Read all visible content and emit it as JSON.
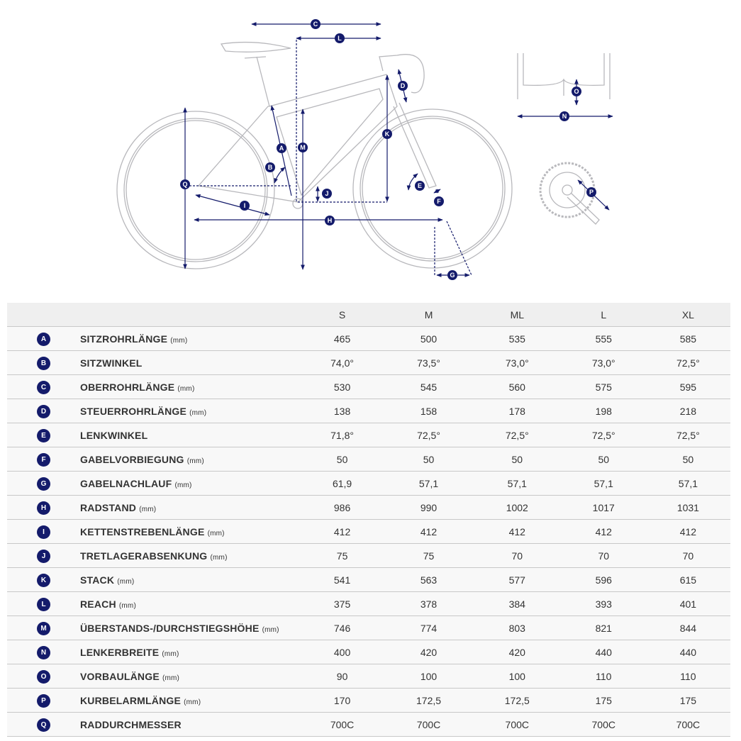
{
  "colors": {
    "accent": "#141b6b",
    "frame_line": "#b8b8bc",
    "header_bg": "#efefef",
    "row_bg": "#f8f8f8"
  },
  "table": {
    "columns": [
      "S",
      "M",
      "ML",
      "L",
      "XL"
    ],
    "rows": [
      {
        "letter": "A",
        "name": "SITZROHRLÄNGE",
        "unit": "(mm)",
        "values": [
          "465",
          "500",
          "535",
          "555",
          "585"
        ]
      },
      {
        "letter": "B",
        "name": "SITZWINKEL",
        "unit": "",
        "values": [
          "74,0°",
          "73,5°",
          "73,0°",
          "73,0°",
          "72,5°"
        ]
      },
      {
        "letter": "C",
        "name": "OBERROHRLÄNGE",
        "unit": "(mm)",
        "values": [
          "530",
          "545",
          "560",
          "575",
          "595"
        ]
      },
      {
        "letter": "D",
        "name": "STEUERROHRLÄNGE",
        "unit": "(mm)",
        "values": [
          "138",
          "158",
          "178",
          "198",
          "218"
        ]
      },
      {
        "letter": "E",
        "name": "LENKWINKEL",
        "unit": "",
        "values": [
          "71,8°",
          "72,5°",
          "72,5°",
          "72,5°",
          "72,5°"
        ]
      },
      {
        "letter": "F",
        "name": "GABELVORBIEGUNG",
        "unit": "(mm)",
        "values": [
          "50",
          "50",
          "50",
          "50",
          "50"
        ]
      },
      {
        "letter": "G",
        "name": "GABELNACHLAUF",
        "unit": "(mm)",
        "values": [
          "61,9",
          "57,1",
          "57,1",
          "57,1",
          "57,1"
        ]
      },
      {
        "letter": "H",
        "name": "RADSTAND",
        "unit": "(mm)",
        "values": [
          "986",
          "990",
          "1002",
          "1017",
          "1031"
        ]
      },
      {
        "letter": "I",
        "name": "KETTENSTREBENLÄNGE",
        "unit": "(mm)",
        "values": [
          "412",
          "412",
          "412",
          "412",
          "412"
        ]
      },
      {
        "letter": "J",
        "name": "TRETLAGERABSENKUNG",
        "unit": "(mm)",
        "values": [
          "75",
          "75",
          "70",
          "70",
          "70"
        ]
      },
      {
        "letter": "K",
        "name": "STACK",
        "unit": "(mm)",
        "values": [
          "541",
          "563",
          "577",
          "596",
          "615"
        ]
      },
      {
        "letter": "L",
        "name": "REACH",
        "unit": "(mm)",
        "values": [
          "375",
          "378",
          "384",
          "393",
          "401"
        ]
      },
      {
        "letter": "M",
        "name": "ÜBERSTANDS-/DURCHSTIEGSHÖHE",
        "unit": "(mm)",
        "values": [
          "746",
          "774",
          "803",
          "821",
          "844"
        ]
      },
      {
        "letter": "N",
        "name": "LENKERBREITE",
        "unit": "(mm)",
        "values": [
          "400",
          "420",
          "420",
          "440",
          "440"
        ]
      },
      {
        "letter": "O",
        "name": "VORBAULÄNGE",
        "unit": "(mm)",
        "values": [
          "90",
          "100",
          "100",
          "110",
          "110"
        ]
      },
      {
        "letter": "P",
        "name": "KURBELARMLÄNGE",
        "unit": "(mm)",
        "values": [
          "170",
          "172,5",
          "172,5",
          "175",
          "175"
        ]
      },
      {
        "letter": "Q",
        "name": "RADDURCHMESSER",
        "unit": "",
        "values": [
          "700C",
          "700C",
          "700C",
          "700C",
          "700C"
        ]
      }
    ]
  }
}
